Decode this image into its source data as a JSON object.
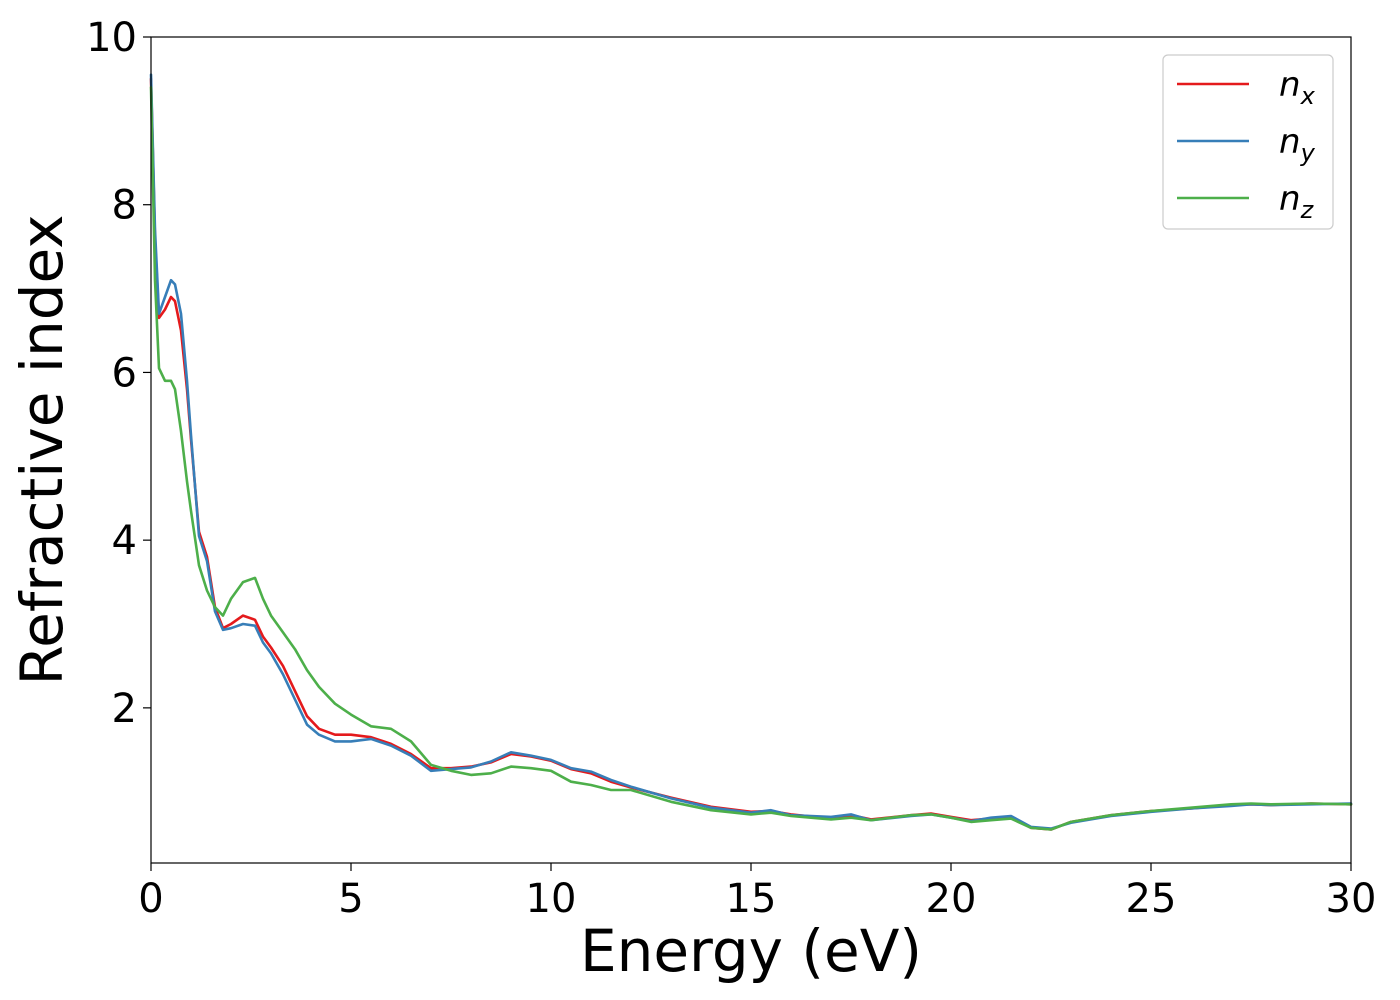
{
  "chart_data": {
    "type": "line",
    "xlabel": "Energy (eV)",
    "ylabel": "Refractive index",
    "xlim": [
      0,
      30
    ],
    "ylim": [
      0.15,
      10
    ],
    "xticks": [
      0,
      5,
      10,
      15,
      20,
      25,
      30
    ],
    "xtick_labels": [
      "0",
      "5",
      "10",
      "15",
      "20",
      "25",
      "30"
    ],
    "yticks": [
      2,
      4,
      6,
      8,
      10
    ],
    "ytick_labels": [
      "2",
      "4",
      "6",
      "8",
      "10"
    ],
    "grid": false,
    "legend_position": "top-right",
    "x": [
      0,
      0.1,
      0.2,
      0.35,
      0.5,
      0.6,
      0.75,
      0.9,
      1.0,
      1.2,
      1.4,
      1.6,
      1.8,
      2.0,
      2.3,
      2.6,
      2.8,
      3.0,
      3.3,
      3.6,
      3.9,
      4.2,
      4.6,
      5.0,
      5.5,
      6.0,
      6.5,
      7.0,
      7.5,
      8.0,
      8.5,
      9.0,
      9.5,
      10.0,
      10.5,
      11.0,
      11.5,
      12.0,
      13.0,
      14.0,
      15.0,
      15.5,
      16.0,
      17.0,
      17.5,
      18.0,
      19.0,
      19.5,
      20.0,
      20.5,
      21.0,
      21.5,
      22.0,
      22.5,
      23.0,
      24.0,
      25.0,
      26.0,
      27.0,
      27.5,
      28.0,
      29.0,
      30.0
    ],
    "series": [
      {
        "name": "n_x",
        "legend_main": "n",
        "legend_sub": "x",
        "color": "#e41a1c",
        "values": [
          9.5,
          7.6,
          6.65,
          6.75,
          6.9,
          6.85,
          6.5,
          5.8,
          5.2,
          4.1,
          3.8,
          3.2,
          2.95,
          3.0,
          3.1,
          3.05,
          2.85,
          2.72,
          2.5,
          2.2,
          1.9,
          1.75,
          1.68,
          1.68,
          1.65,
          1.57,
          1.45,
          1.28,
          1.28,
          1.3,
          1.35,
          1.45,
          1.42,
          1.37,
          1.27,
          1.22,
          1.12,
          1.05,
          0.93,
          0.82,
          0.76,
          0.77,
          0.73,
          0.68,
          0.72,
          0.67,
          0.72,
          0.74,
          0.7,
          0.66,
          0.68,
          0.7,
          0.57,
          0.55,
          0.64,
          0.72,
          0.77,
          0.8,
          0.84,
          0.85,
          0.84,
          0.86,
          0.85
        ]
      },
      {
        "name": "n_y",
        "legend_main": "n",
        "legend_sub": "y",
        "color": "#377eb8",
        "values": [
          9.55,
          7.7,
          6.7,
          6.9,
          7.1,
          7.05,
          6.7,
          5.9,
          5.25,
          4.05,
          3.75,
          3.15,
          2.93,
          2.95,
          3.0,
          2.98,
          2.78,
          2.65,
          2.4,
          2.1,
          1.8,
          1.68,
          1.6,
          1.6,
          1.63,
          1.55,
          1.43,
          1.25,
          1.27,
          1.29,
          1.36,
          1.47,
          1.43,
          1.38,
          1.28,
          1.24,
          1.14,
          1.06,
          0.92,
          0.81,
          0.75,
          0.78,
          0.72,
          0.7,
          0.73,
          0.66,
          0.71,
          0.73,
          0.69,
          0.65,
          0.69,
          0.71,
          0.58,
          0.56,
          0.63,
          0.71,
          0.76,
          0.8,
          0.83,
          0.85,
          0.84,
          0.85,
          0.86
        ]
      },
      {
        "name": "n_z",
        "legend_main": "n",
        "legend_sub": "z",
        "color": "#4daf4a",
        "values": [
          9.4,
          7.1,
          6.05,
          5.9,
          5.9,
          5.8,
          5.3,
          4.7,
          4.35,
          3.7,
          3.4,
          3.2,
          3.1,
          3.3,
          3.5,
          3.55,
          3.3,
          3.1,
          2.9,
          2.7,
          2.45,
          2.25,
          2.05,
          1.92,
          1.78,
          1.75,
          1.6,
          1.32,
          1.25,
          1.2,
          1.22,
          1.3,
          1.28,
          1.25,
          1.12,
          1.08,
          1.02,
          1.02,
          0.88,
          0.78,
          0.73,
          0.75,
          0.71,
          0.67,
          0.69,
          0.66,
          0.72,
          0.73,
          0.69,
          0.64,
          0.66,
          0.68,
          0.57,
          0.55,
          0.64,
          0.72,
          0.77,
          0.81,
          0.85,
          0.86,
          0.85,
          0.86,
          0.85
        ]
      }
    ]
  }
}
